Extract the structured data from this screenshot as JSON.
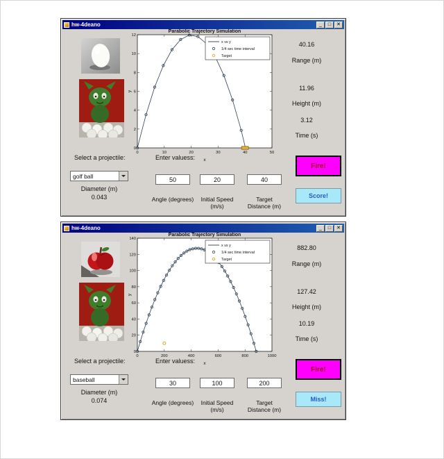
{
  "colors": {
    "titlebar": "#000080",
    "window_bg": "#d6d3ce",
    "fire_button": "#ff00ff",
    "fire_text": "#a00020",
    "result_button": "#a9e8f8",
    "result_text": "#2b59c3",
    "target_gold": "#d9b13b",
    "series": "#2e3f52"
  },
  "windows": [
    {
      "title": "hw-4deano",
      "buttons": [
        "_",
        "□",
        "✕"
      ],
      "images": [
        "egg",
        "gremlin-on-golf-balls"
      ],
      "outputs": [
        {
          "value": "40.16",
          "label": "Range (m)"
        },
        {
          "value": "11.96",
          "label": "Height (m)"
        },
        {
          "value": "3.12",
          "label": "Time (s)"
        }
      ],
      "select_label": "Select a projectile:",
      "projectile_selected": "golf ball",
      "diameter_label": "Diameter (m)",
      "diameter_value": "0.043",
      "enter_label": "Enter valuess:",
      "inputs": [
        {
          "value": "50",
          "label1": "Angle (degrees)",
          "label2": ""
        },
        {
          "value": "20",
          "label1": "Initial Speed",
          "label2": "(m/s)"
        },
        {
          "value": "40",
          "label1": "Target",
          "label2": "Distance (m)"
        }
      ],
      "fire_button": "Fire!",
      "result_button": "Score!"
    },
    {
      "title": "hw-4deano",
      "buttons": [
        "_",
        "□",
        "✕"
      ],
      "images": [
        "apple",
        "gremlin-on-golf-balls"
      ],
      "outputs": [
        {
          "value": "882.80",
          "label": "Range (m)"
        },
        {
          "value": "127.42",
          "label": "Height (m)"
        },
        {
          "value": "10.19",
          "label": "Time (s)"
        }
      ],
      "select_label": "Select a projectile:",
      "projectile_selected": "baseball",
      "diameter_label": "Diameter (m)",
      "diameter_value": "0.074",
      "enter_label": "Enter valuess:",
      "inputs": [
        {
          "value": "30",
          "label1": "Angle (degrees)",
          "label2": ""
        },
        {
          "value": "100",
          "label1": "Initial Speed",
          "label2": "(m/s)"
        },
        {
          "value": "200",
          "label1": "Target",
          "label2": "Distance (m)"
        }
      ],
      "fire_button": "Fire!",
      "result_button": "Miss!"
    }
  ],
  "chart_data": [
    {
      "type": "line",
      "title": "Parabolic Trajectory Simulation",
      "xlabel": "x",
      "ylabel": "y",
      "xlim": [
        0,
        50
      ],
      "ylim": [
        0,
        12
      ],
      "xticks": [
        0,
        10,
        20,
        30,
        40,
        50
      ],
      "yticks": [
        0,
        2,
        4,
        6,
        8,
        10,
        12
      ],
      "grid": false,
      "legend": [
        "x vs y",
        "1/4 sec time interval",
        "Target"
      ],
      "legend_position": "top-right",
      "series_color": "#2e3f52",
      "target_color": "#d9b13b",
      "points": [
        [
          0,
          0
        ],
        [
          3.21,
          3.52
        ],
        [
          6.43,
          6.44
        ],
        [
          9.64,
          8.73
        ],
        [
          12.86,
          10.42
        ],
        [
          16.07,
          11.49
        ],
        [
          19.29,
          11.96
        ],
        [
          22.5,
          11.8
        ],
        [
          25.71,
          11.04
        ],
        [
          28.93,
          9.67
        ],
        [
          32.14,
          7.68
        ],
        [
          35.36,
          5.08
        ],
        [
          38.57,
          1.86
        ],
        [
          40.16,
          0
        ]
      ],
      "target": {
        "x": 40,
        "y": 0,
        "marker": "bar"
      }
    },
    {
      "type": "line",
      "title": "Parabolic Trajectory Simulation",
      "xlabel": "x",
      "ylabel": "y",
      "xlim": [
        0,
        1000
      ],
      "ylim": [
        0,
        140
      ],
      "xticks": [
        0,
        200,
        400,
        600,
        800,
        1000
      ],
      "yticks": [
        0,
        20,
        40,
        60,
        80,
        100,
        120,
        140
      ],
      "grid": false,
      "legend": [
        "x vs y",
        "1/4 sec time interval",
        "Target"
      ],
      "legend_position": "top-right",
      "series_color": "#2e3f52",
      "target_color": "#d9b13b",
      "points": [
        [
          0,
          0
        ],
        [
          21.7,
          12.2
        ],
        [
          43.3,
          23.8
        ],
        [
          65,
          34.7
        ],
        [
          86.6,
          45.1
        ],
        [
          108.3,
          54.8
        ],
        [
          129.9,
          64
        ],
        [
          151.6,
          72.5
        ],
        [
          173.2,
          80.4
        ],
        [
          194.9,
          87.7
        ],
        [
          216.5,
          94.4
        ],
        [
          238.2,
          100.4
        ],
        [
          259.8,
          105.9
        ],
        [
          281.5,
          110.7
        ],
        [
          303.1,
          115
        ],
        [
          324.8,
          118.6
        ],
        [
          346.4,
          121.6
        ],
        [
          368.1,
          124
        ],
        [
          389.7,
          125.8
        ],
        [
          411.4,
          126.9
        ],
        [
          433,
          127.5
        ],
        [
          454.7,
          127.4
        ],
        [
          476.3,
          126.8
        ],
        [
          498,
          125.5
        ],
        [
          519.6,
          123.6
        ],
        [
          541.3,
          121.1
        ],
        [
          562.9,
          118
        ],
        [
          584.6,
          114.2
        ],
        [
          606.2,
          109.9
        ],
        [
          627.9,
          104.9
        ],
        [
          649.5,
          99.4
        ],
        [
          671.2,
          93.2
        ],
        [
          692.8,
          86.4
        ],
        [
          714.5,
          79
        ],
        [
          736.1,
          71
        ],
        [
          757.8,
          62.3
        ],
        [
          779.4,
          53.1
        ],
        [
          801.1,
          43.2
        ],
        [
          822.7,
          32.8
        ],
        [
          844.4,
          21.7
        ],
        [
          866,
          10
        ],
        [
          882.8,
          0
        ]
      ],
      "target": {
        "x": 200,
        "y": 10,
        "marker": "circle"
      }
    }
  ]
}
